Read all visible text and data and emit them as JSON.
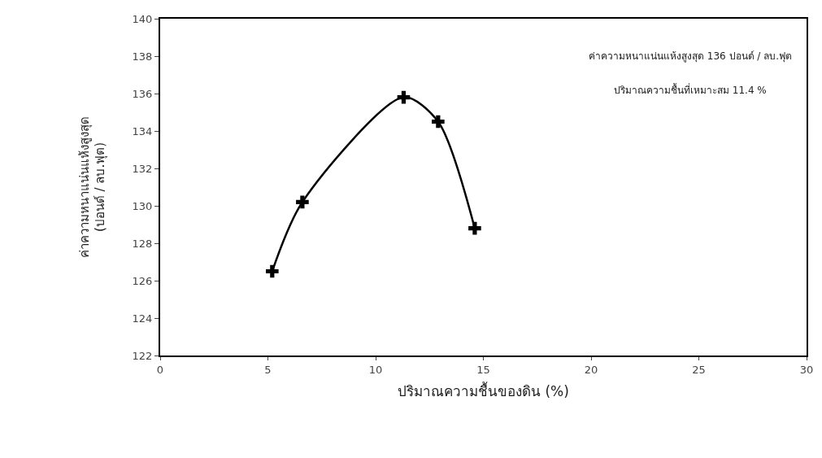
{
  "chart_data": {
    "type": "line",
    "x": [
      5.2,
      6.6,
      11.3,
      12.9,
      14.6
    ],
    "series": [
      {
        "color": "#000000",
        "values": [
          126.5,
          130.2,
          135.8,
          134.5,
          128.8
        ]
      }
    ],
    "xlabel": "ปริมาณความชื้นของดิน (%)",
    "ylabel": "ค่าความหนาแน่นแห้งสูงสุด\n(ปอนด์ / ลบ.ฟุต)",
    "xlim": [
      0,
      30
    ],
    "xticks": [
      0,
      5,
      10,
      15,
      20,
      25,
      30
    ],
    "ylim": [
      122,
      140
    ],
    "yticks": [
      122,
      124,
      126,
      128,
      130,
      132,
      134,
      136,
      138,
      140
    ],
    "annotations": [
      "ค่าความหนาแน่นแห้งสูงสุด 136 ปอนด์ / ลบ.ฟุต",
      "ปริมาณความชื้นที่เหมาะสม 11.4 %"
    ],
    "marker": "cross",
    "line_style": "solid"
  }
}
